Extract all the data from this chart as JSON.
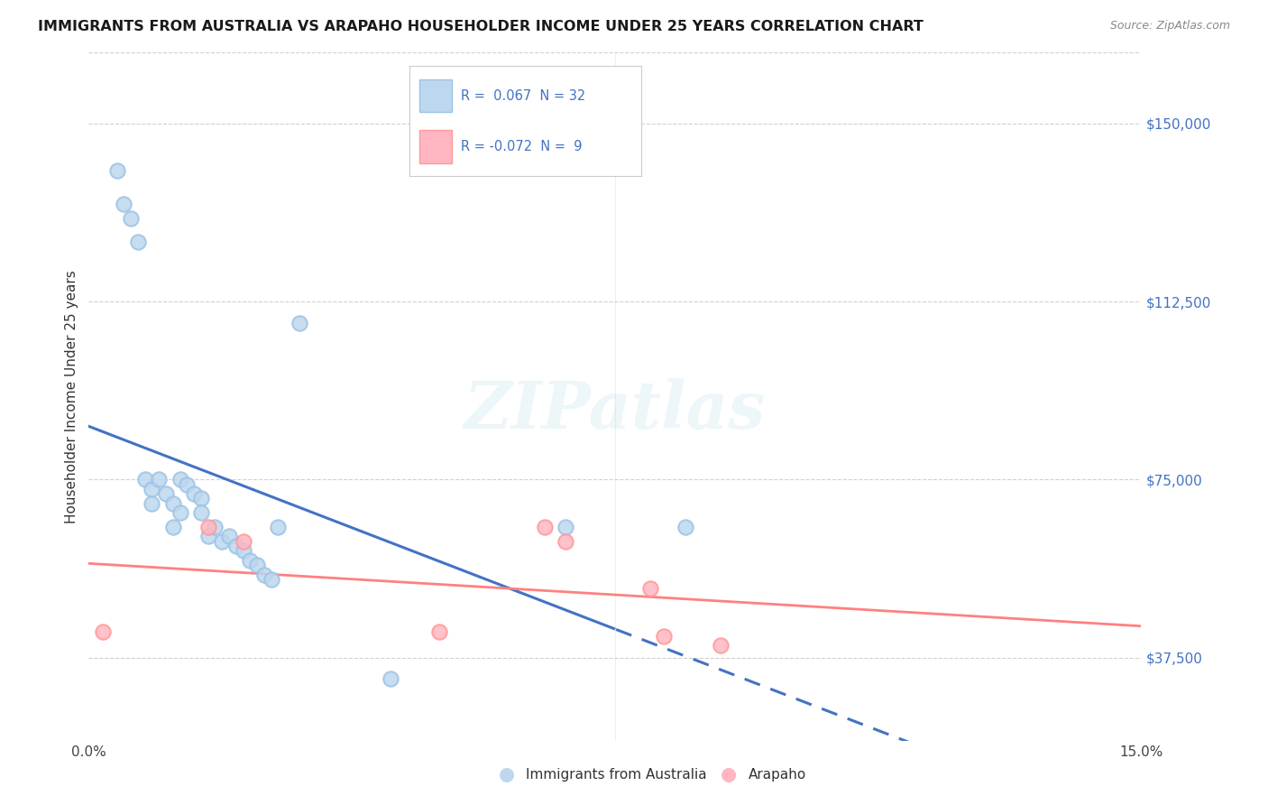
{
  "title": "IMMIGRANTS FROM AUSTRALIA VS ARAPAHO HOUSEHOLDER INCOME UNDER 25 YEARS CORRELATION CHART",
  "source": "Source: ZipAtlas.com",
  "ylabel": "Householder Income Under 25 years",
  "xlim": [
    0.0,
    0.15
  ],
  "ylim": [
    20000,
    165000
  ],
  "yticks": [
    37500,
    75000,
    112500,
    150000
  ],
  "ytick_labels": [
    "$37,500",
    "$75,000",
    "$112,500",
    "$150,000"
  ],
  "R_blue": 0.067,
  "N_blue": 32,
  "R_pink": -0.072,
  "N_pink": 9,
  "blue_scatter_x": [
    0.004,
    0.005,
    0.006,
    0.007,
    0.008,
    0.009,
    0.009,
    0.01,
    0.011,
    0.012,
    0.012,
    0.013,
    0.013,
    0.014,
    0.015,
    0.016,
    0.016,
    0.017,
    0.018,
    0.019,
    0.02,
    0.021,
    0.022,
    0.023,
    0.024,
    0.025,
    0.026,
    0.027,
    0.03,
    0.043,
    0.068,
    0.085
  ],
  "blue_scatter_y": [
    140000,
    133000,
    130000,
    125000,
    75000,
    73000,
    70000,
    75000,
    72000,
    70000,
    65000,
    75000,
    68000,
    74000,
    72000,
    71000,
    68000,
    63000,
    65000,
    62000,
    63000,
    61000,
    60000,
    58000,
    57000,
    55000,
    54000,
    65000,
    108000,
    33000,
    65000,
    65000
  ],
  "pink_scatter_x": [
    0.002,
    0.017,
    0.022,
    0.05,
    0.065,
    0.068,
    0.08,
    0.082,
    0.09
  ],
  "pink_scatter_y": [
    43000,
    65000,
    62000,
    43000,
    65000,
    62000,
    52000,
    42000,
    40000
  ],
  "blue_line_color": "#4472C4",
  "pink_line_color": "#FF8080",
  "blue_marker_facecolor": "#BDD7EE",
  "blue_marker_edgecolor": "#9DC3E6",
  "pink_marker_facecolor": "#FFB6C1",
  "pink_marker_edgecolor": "#FF9999",
  "background_color": "#ffffff",
  "watermark": "ZIPatlas",
  "grid_color": "#d0d0d0",
  "legend_blue_text_color": "#4472C4",
  "ytick_color": "#4472C4"
}
